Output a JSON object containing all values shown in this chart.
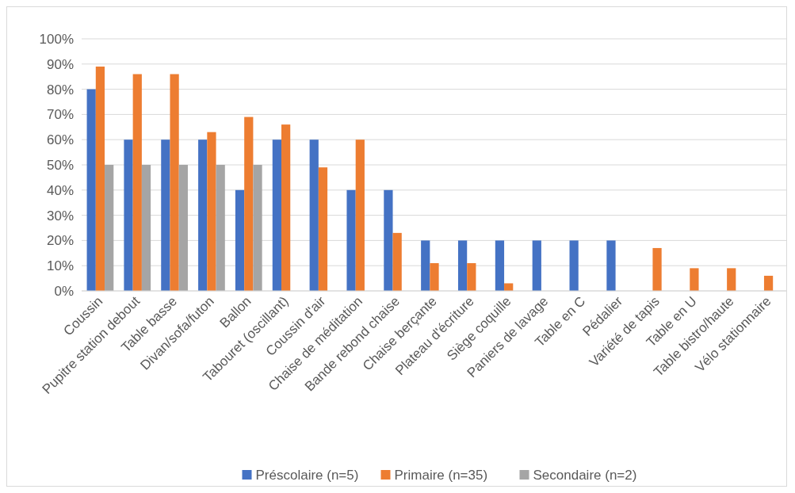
{
  "chart_data": {
    "type": "bar",
    "categories": [
      "Coussin",
      "Pupitre station debout",
      "Table basse",
      "Divan/sofa/futon",
      "Ballon",
      "Tabouret (oscillant)",
      "Coussin d'air",
      "Chaise de méditation",
      "Bande rebond chaise",
      "Chaise berçante",
      "Plateau d'écriture",
      "Siège coquille",
      "Paniers de lavage",
      "Table en C",
      "Pédalier",
      "Variété de tapis",
      "Table en U",
      "Table bistro/haute",
      "Vélo stationnaire"
    ],
    "series": [
      {
        "name": "Préscolaire (n=5)",
        "color": "#4472c4",
        "values": [
          80,
          60,
          60,
          60,
          40,
          60,
          60,
          40,
          40,
          20,
          20,
          20,
          20,
          20,
          20,
          null,
          null,
          null,
          null
        ]
      },
      {
        "name": "Primaire (n=35)",
        "color": "#ed7d31",
        "values": [
          89,
          86,
          86,
          63,
          69,
          66,
          49,
          60,
          23,
          11,
          11,
          3,
          null,
          null,
          null,
          17,
          9,
          9,
          6
        ]
      },
      {
        "name": "Secondaire (n=2)",
        "color": "#a5a5a5",
        "values": [
          50,
          50,
          50,
          50,
          50,
          null,
          null,
          null,
          null,
          null,
          null,
          null,
          null,
          null,
          null,
          null,
          null,
          null,
          null
        ]
      }
    ],
    "ylim": [
      0,
      100
    ],
    "yticks": [
      {
        "value": 0,
        "label": "0%"
      },
      {
        "value": 10,
        "label": "10%"
      },
      {
        "value": 20,
        "label": "20%"
      },
      {
        "value": 30,
        "label": "30%"
      },
      {
        "value": 40,
        "label": "40%"
      },
      {
        "value": 50,
        "label": "50%"
      },
      {
        "value": 60,
        "label": "60%"
      },
      {
        "value": 70,
        "label": "70%"
      },
      {
        "value": 80,
        "label": "80%"
      },
      {
        "value": 90,
        "label": "90%"
      },
      {
        "value": 100,
        "label": "100%"
      }
    ],
    "grid": "y",
    "legend": "bottom"
  }
}
